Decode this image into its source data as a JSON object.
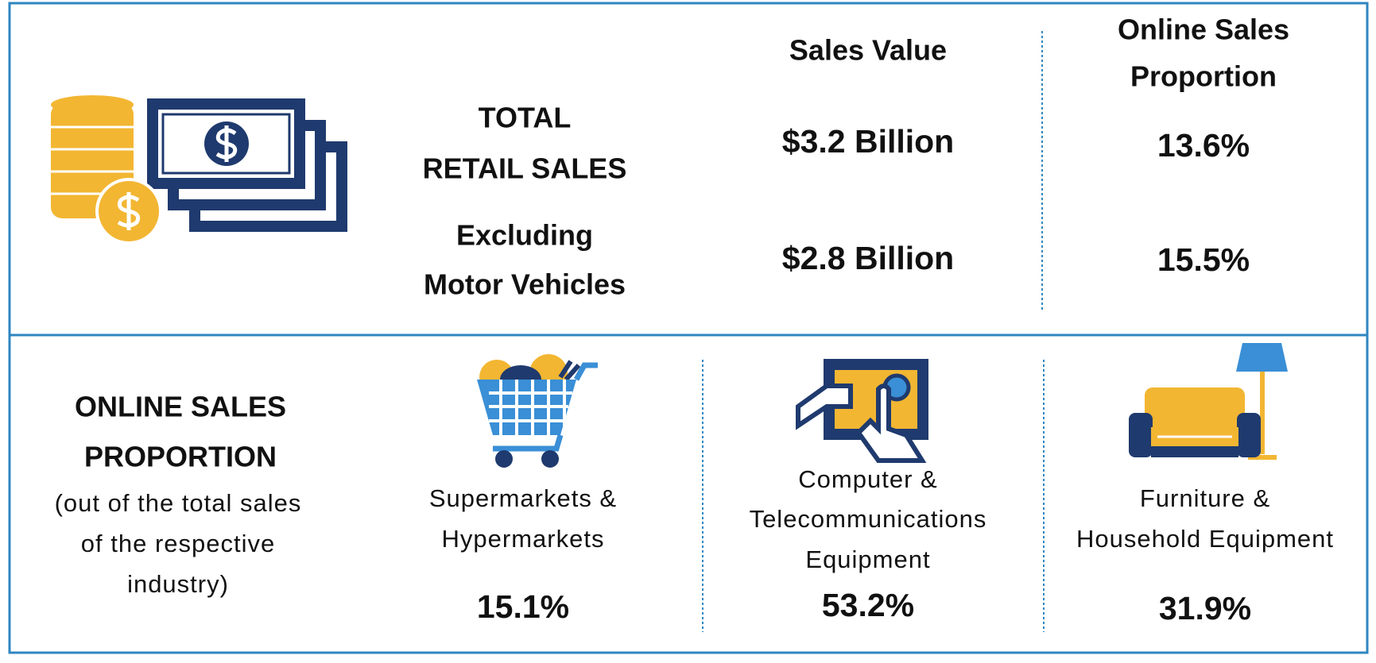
{
  "top": {
    "sales_value_header": "Sales Value",
    "proportion_header": [
      "Online Sales",
      "Proportion"
    ],
    "rows": [
      {
        "label": [
          "TOTAL",
          "RETAIL SALES"
        ],
        "sales_value": "$3.2 Billion",
        "online_proportion": "13.6%"
      },
      {
        "label": [
          "Excluding",
          "Motor Vehicles"
        ],
        "sales_value": "$2.8 Billion",
        "online_proportion": "15.5%"
      }
    ]
  },
  "bottom": {
    "title": [
      "ONLINE SALES",
      "PROPORTION"
    ],
    "subtitle": [
      "(out of the total sales",
      "of the respective",
      "industry)"
    ],
    "categories": [
      {
        "name": [
          "Supermarkets &",
          "Hypermarkets"
        ],
        "value": "15.1%"
      },
      {
        "name": [
          "Computer &",
          "Telecommunications",
          "Equipment"
        ],
        "value": "53.2%"
      },
      {
        "name": [
          "Furniture &",
          "Household Equipment"
        ],
        "value": "31.9%"
      }
    ]
  }
}
